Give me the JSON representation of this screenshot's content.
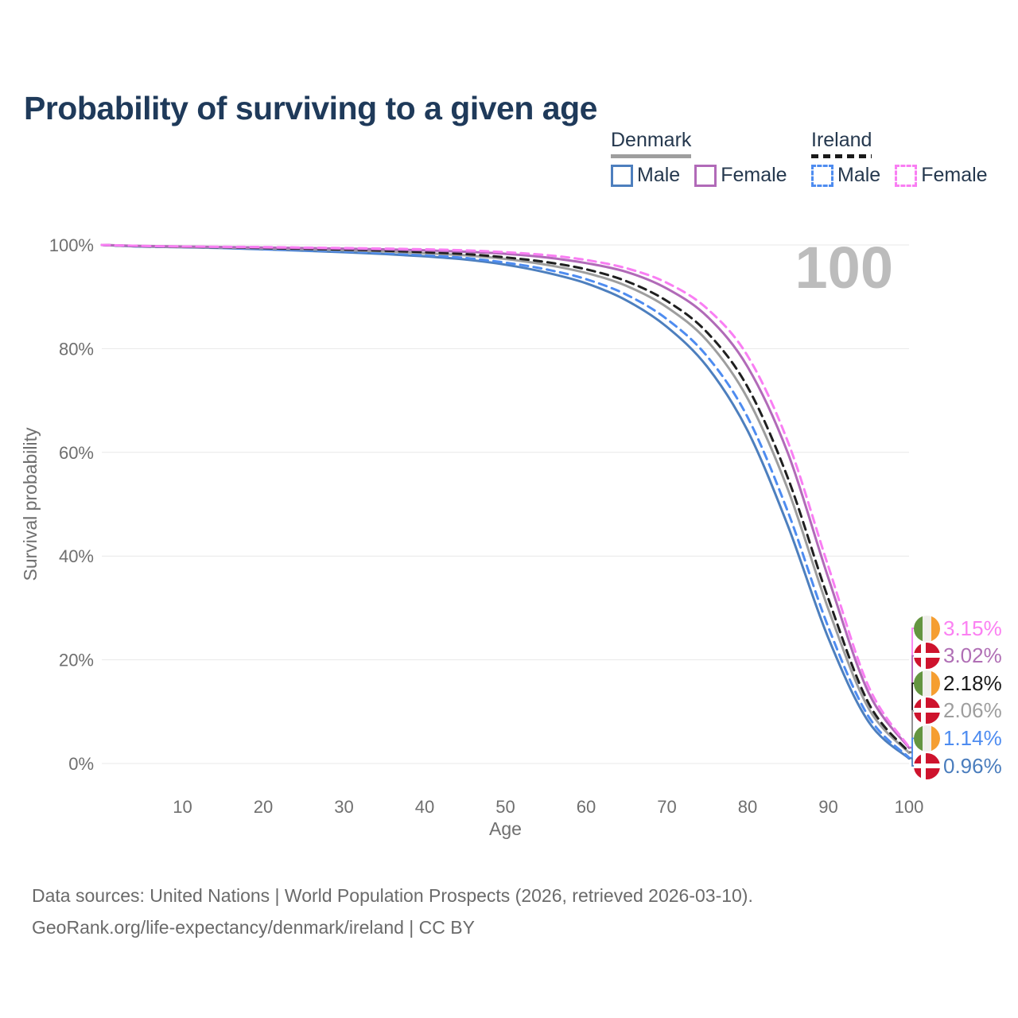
{
  "title": "Probability of surviving to a given age",
  "legend": {
    "groups": [
      {
        "name": "Denmark",
        "line_style": "solid",
        "underline_color": "#9e9e9e",
        "items": [
          {
            "label": "Male",
            "color": "#4d7fbe"
          },
          {
            "label": "Female",
            "color": "#b16ab8"
          }
        ]
      },
      {
        "name": "Ireland",
        "line_style": "dashed",
        "underline_color": "#1a1a1a",
        "items": [
          {
            "label": "Male",
            "color": "#4e8cf0"
          },
          {
            "label": "Female",
            "color": "#f97ef3"
          }
        ]
      }
    ]
  },
  "chart_data": {
    "type": "line",
    "title": "Probability of surviving to a given age",
    "xlabel": "Age",
    "ylabel": "Survival probability",
    "xlim": [
      0,
      100
    ],
    "ylim": [
      0,
      100
    ],
    "xticks": [
      10,
      20,
      30,
      40,
      50,
      60,
      70,
      80,
      90,
      100
    ],
    "yticks": [
      0,
      20,
      40,
      60,
      80,
      100
    ],
    "ytick_suffix": "%",
    "grid": "horizontal",
    "legend_position": "top-right",
    "watermark": "100",
    "x": [
      0,
      5,
      10,
      15,
      20,
      25,
      30,
      35,
      40,
      45,
      50,
      55,
      60,
      65,
      70,
      75,
      80,
      85,
      90,
      95,
      100
    ],
    "series": [
      {
        "name": "Ireland Female",
        "country": "ireland",
        "sex": "female",
        "color": "#f97ef3",
        "dash": true,
        "values": [
          100,
          99.8,
          99.7,
          99.65,
          99.6,
          99.5,
          99.4,
          99.3,
          99.15,
          98.95,
          98.6,
          98.05,
          97.1,
          95.5,
          92.7,
          87.7,
          78.6,
          62.0,
          38.0,
          14.8,
          3.15
        ],
        "end_label": "3.15%"
      },
      {
        "name": "Denmark Female",
        "country": "denmark",
        "sex": "female",
        "color": "#b16ab8",
        "dash": false,
        "values": [
          100,
          99.8,
          99.7,
          99.6,
          99.5,
          99.4,
          99.3,
          99.15,
          98.95,
          98.7,
          98.3,
          97.6,
          96.5,
          94.8,
          91.6,
          86.2,
          76.5,
          59.8,
          35.8,
          13.6,
          3.02
        ],
        "end_label": "3.02%"
      },
      {
        "name": "Ireland Total",
        "country": "ireland",
        "sex": "total",
        "color": "#1f1f1f",
        "dash": true,
        "values": [
          100,
          99.75,
          99.65,
          99.55,
          99.4,
          99.25,
          99.1,
          98.9,
          98.6,
          98.25,
          97.6,
          96.7,
          95.3,
          93.0,
          89.2,
          83.1,
          72.6,
          55.0,
          31.8,
          11.6,
          2.18
        ],
        "end_label": "2.18%"
      },
      {
        "name": "Denmark Total",
        "country": "denmark",
        "sex": "total",
        "color": "#9e9e9e",
        "dash": false,
        "values": [
          100,
          99.75,
          99.6,
          99.5,
          99.35,
          99.2,
          99.0,
          98.75,
          98.4,
          98.0,
          97.3,
          96.2,
          94.6,
          92.1,
          88.0,
          81.5,
          70.4,
          52.8,
          29.8,
          10.6,
          2.06
        ],
        "end_label": "2.06%"
      },
      {
        "name": "Ireland Male",
        "country": "ireland",
        "sex": "male",
        "color": "#4e8cf0",
        "dash": true,
        "values": [
          100,
          99.7,
          99.6,
          99.45,
          99.2,
          99.0,
          98.75,
          98.45,
          98.05,
          97.5,
          96.6,
          95.3,
          93.4,
          90.4,
          85.7,
          78.5,
          66.8,
          48.5,
          26.3,
          9.0,
          1.14
        ],
        "end_label": "1.14%"
      },
      {
        "name": "Denmark Male",
        "country": "denmark",
        "sex": "male",
        "color": "#4d7fbe",
        "dash": false,
        "values": [
          100,
          99.7,
          99.55,
          99.4,
          99.15,
          98.9,
          98.6,
          98.25,
          97.8,
          97.2,
          96.2,
          94.7,
          92.6,
          89.3,
          84.2,
          76.5,
          64.2,
          45.8,
          24.2,
          8.0,
          0.96
        ],
        "end_label": "0.96%"
      }
    ]
  },
  "end_labels": [
    {
      "flag": "ireland",
      "flag_class": "flag flag-ireland",
      "value": "3.15%",
      "color": "#fb80f2"
    },
    {
      "flag": "denmark",
      "flag_class": "flag flag-denmark",
      "value": "3.02%",
      "color": "#b06fb5"
    },
    {
      "flag": "ireland",
      "flag_class": "flag flag-ireland",
      "value": "2.18%",
      "color": "#1a1a1a"
    },
    {
      "flag": "denmark",
      "flag_class": "flag flag-denmark",
      "value": "2.06%",
      "color": "#9e9e9e"
    },
    {
      "flag": "ireland",
      "flag_class": "flag flag-ireland",
      "value": "1.14%",
      "color": "#4e8cf0"
    },
    {
      "flag": "denmark",
      "flag_class": "flag flag-denmark",
      "value": "0.96%",
      "color": "#4a7dbd"
    }
  ],
  "footer": {
    "line1": "Data sources: United Nations | World Population Prospects (2026, retrieved 2026-03-10).",
    "line2": "GeoRank.org/life-expectancy/denmark/ireland | CC BY"
  }
}
